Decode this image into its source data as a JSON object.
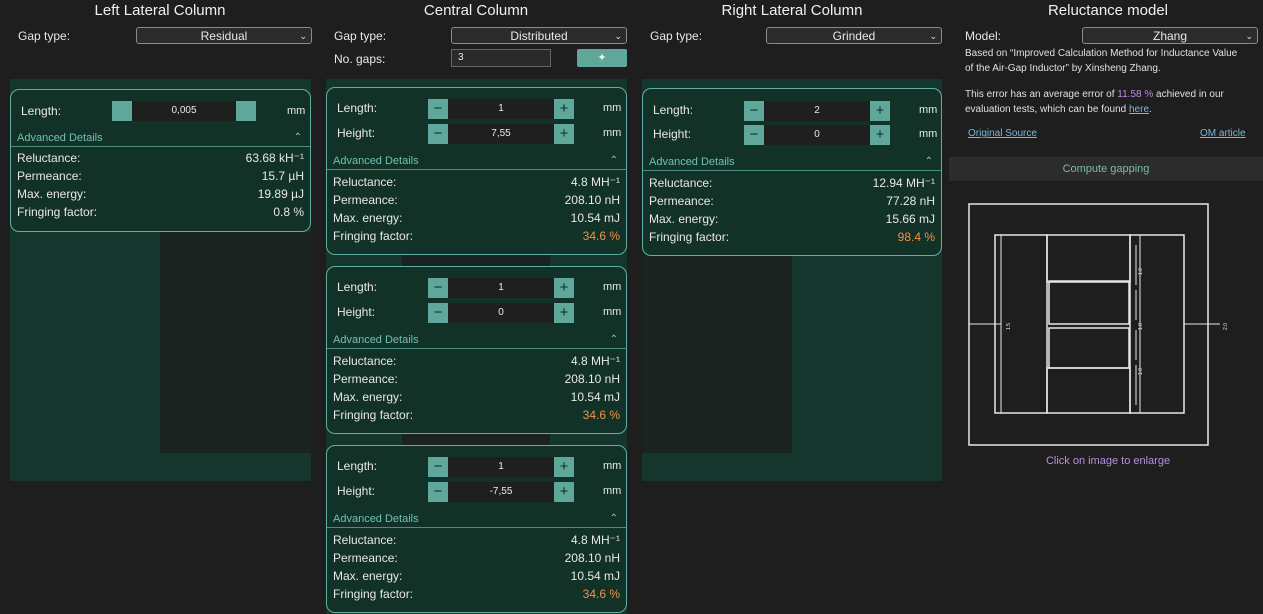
{
  "left": {
    "title": "Left Lateral Column",
    "gap_type_label": "Gap type:",
    "gap_type_value": "Residual",
    "card": {
      "length_label": "Length:",
      "length_value": "0,005",
      "unit": "mm",
      "advanced_label": "Advanced Details",
      "reluctance_label": "Reluctance:",
      "reluctance_value": "63.68 kH⁻¹",
      "permeance_label": "Permeance:",
      "permeance_value": "15.7 µH",
      "energy_label": "Max. energy:",
      "energy_value": "19.89 µJ",
      "fringing_label": "Fringing factor:",
      "fringing_value": "0.8 %"
    }
  },
  "central": {
    "title": "Central Column",
    "gap_type_label": "Gap type:",
    "gap_type_value": "Distributed",
    "no_gaps_label": "No. gaps:",
    "no_gaps_value": "3",
    "cards": [
      {
        "length_label": "Length:",
        "length_value": "1",
        "height_label": "Height:",
        "height_value": "7,55",
        "unit": "mm",
        "advanced_label": "Advanced Details",
        "reluctance_label": "Reluctance:",
        "reluctance_value": "4.8 MH⁻¹",
        "permeance_label": "Permeance:",
        "permeance_value": "208.10 nH",
        "energy_label": "Max. energy:",
        "energy_value": "10.54 mJ",
        "fringing_label": "Fringing factor:",
        "fringing_value": "34.6 %"
      },
      {
        "length_label": "Length:",
        "length_value": "1",
        "height_label": "Height:",
        "height_value": "0",
        "unit": "mm",
        "advanced_label": "Advanced Details",
        "reluctance_label": "Reluctance:",
        "reluctance_value": "4.8 MH⁻¹",
        "permeance_label": "Permeance:",
        "permeance_value": "208.10 nH",
        "energy_label": "Max. energy:",
        "energy_value": "10.54 mJ",
        "fringing_label": "Fringing factor:",
        "fringing_value": "34.6 %"
      },
      {
        "length_label": "Length:",
        "length_value": "1",
        "height_label": "Height:",
        "height_value": "-7,55",
        "unit": "mm",
        "advanced_label": "Advanced Details",
        "reluctance_label": "Reluctance:",
        "reluctance_value": "4.8 MH⁻¹",
        "permeance_label": "Permeance:",
        "permeance_value": "208.10 nH",
        "energy_label": "Max. energy:",
        "energy_value": "10.54 mJ",
        "fringing_label": "Fringing factor:",
        "fringing_value": "34.6 %"
      }
    ]
  },
  "right": {
    "title": "Right Lateral Column",
    "gap_type_label": "Gap type:",
    "gap_type_value": "Grinded",
    "card": {
      "length_label": "Length:",
      "length_value": "2",
      "height_label": "Height:",
      "height_value": "0",
      "unit": "mm",
      "advanced_label": "Advanced Details",
      "reluctance_label": "Reluctance:",
      "reluctance_value": "12.94 MH⁻¹",
      "permeance_label": "Permeance:",
      "permeance_value": "77.28 nH",
      "energy_label": "Max. energy:",
      "energy_value": "15.66 mJ",
      "fringing_label": "Fringing factor:",
      "fringing_value": "98.4 %"
    }
  },
  "model": {
    "title": "Reluctance model",
    "model_label": "Model:",
    "model_value": "Zhang",
    "desc1": "Based on “Improved Calculation Method for Inductance Value",
    "desc2": "of the Air-Gap Inductor” by Xinsheng Zhang.",
    "err_pre": "This error has an average error of ",
    "err_value": "11.58 %",
    "err_post": " achieved in our",
    "err_line2_pre": "evaluation tests, which can be found ",
    "err_link": "here",
    "err_line2_post": ".",
    "original_source": "Original Source",
    "om_article": "OM article",
    "compute_button": "Compute gapping",
    "enlarge_hint": "Click on image to enlarge"
  },
  "colors": {
    "accent": "#5fa79b",
    "panel": "#14362d",
    "card": "#123127",
    "warning": "#f39246",
    "link": "#7ab8d8",
    "purple": "#b98ee0"
  }
}
